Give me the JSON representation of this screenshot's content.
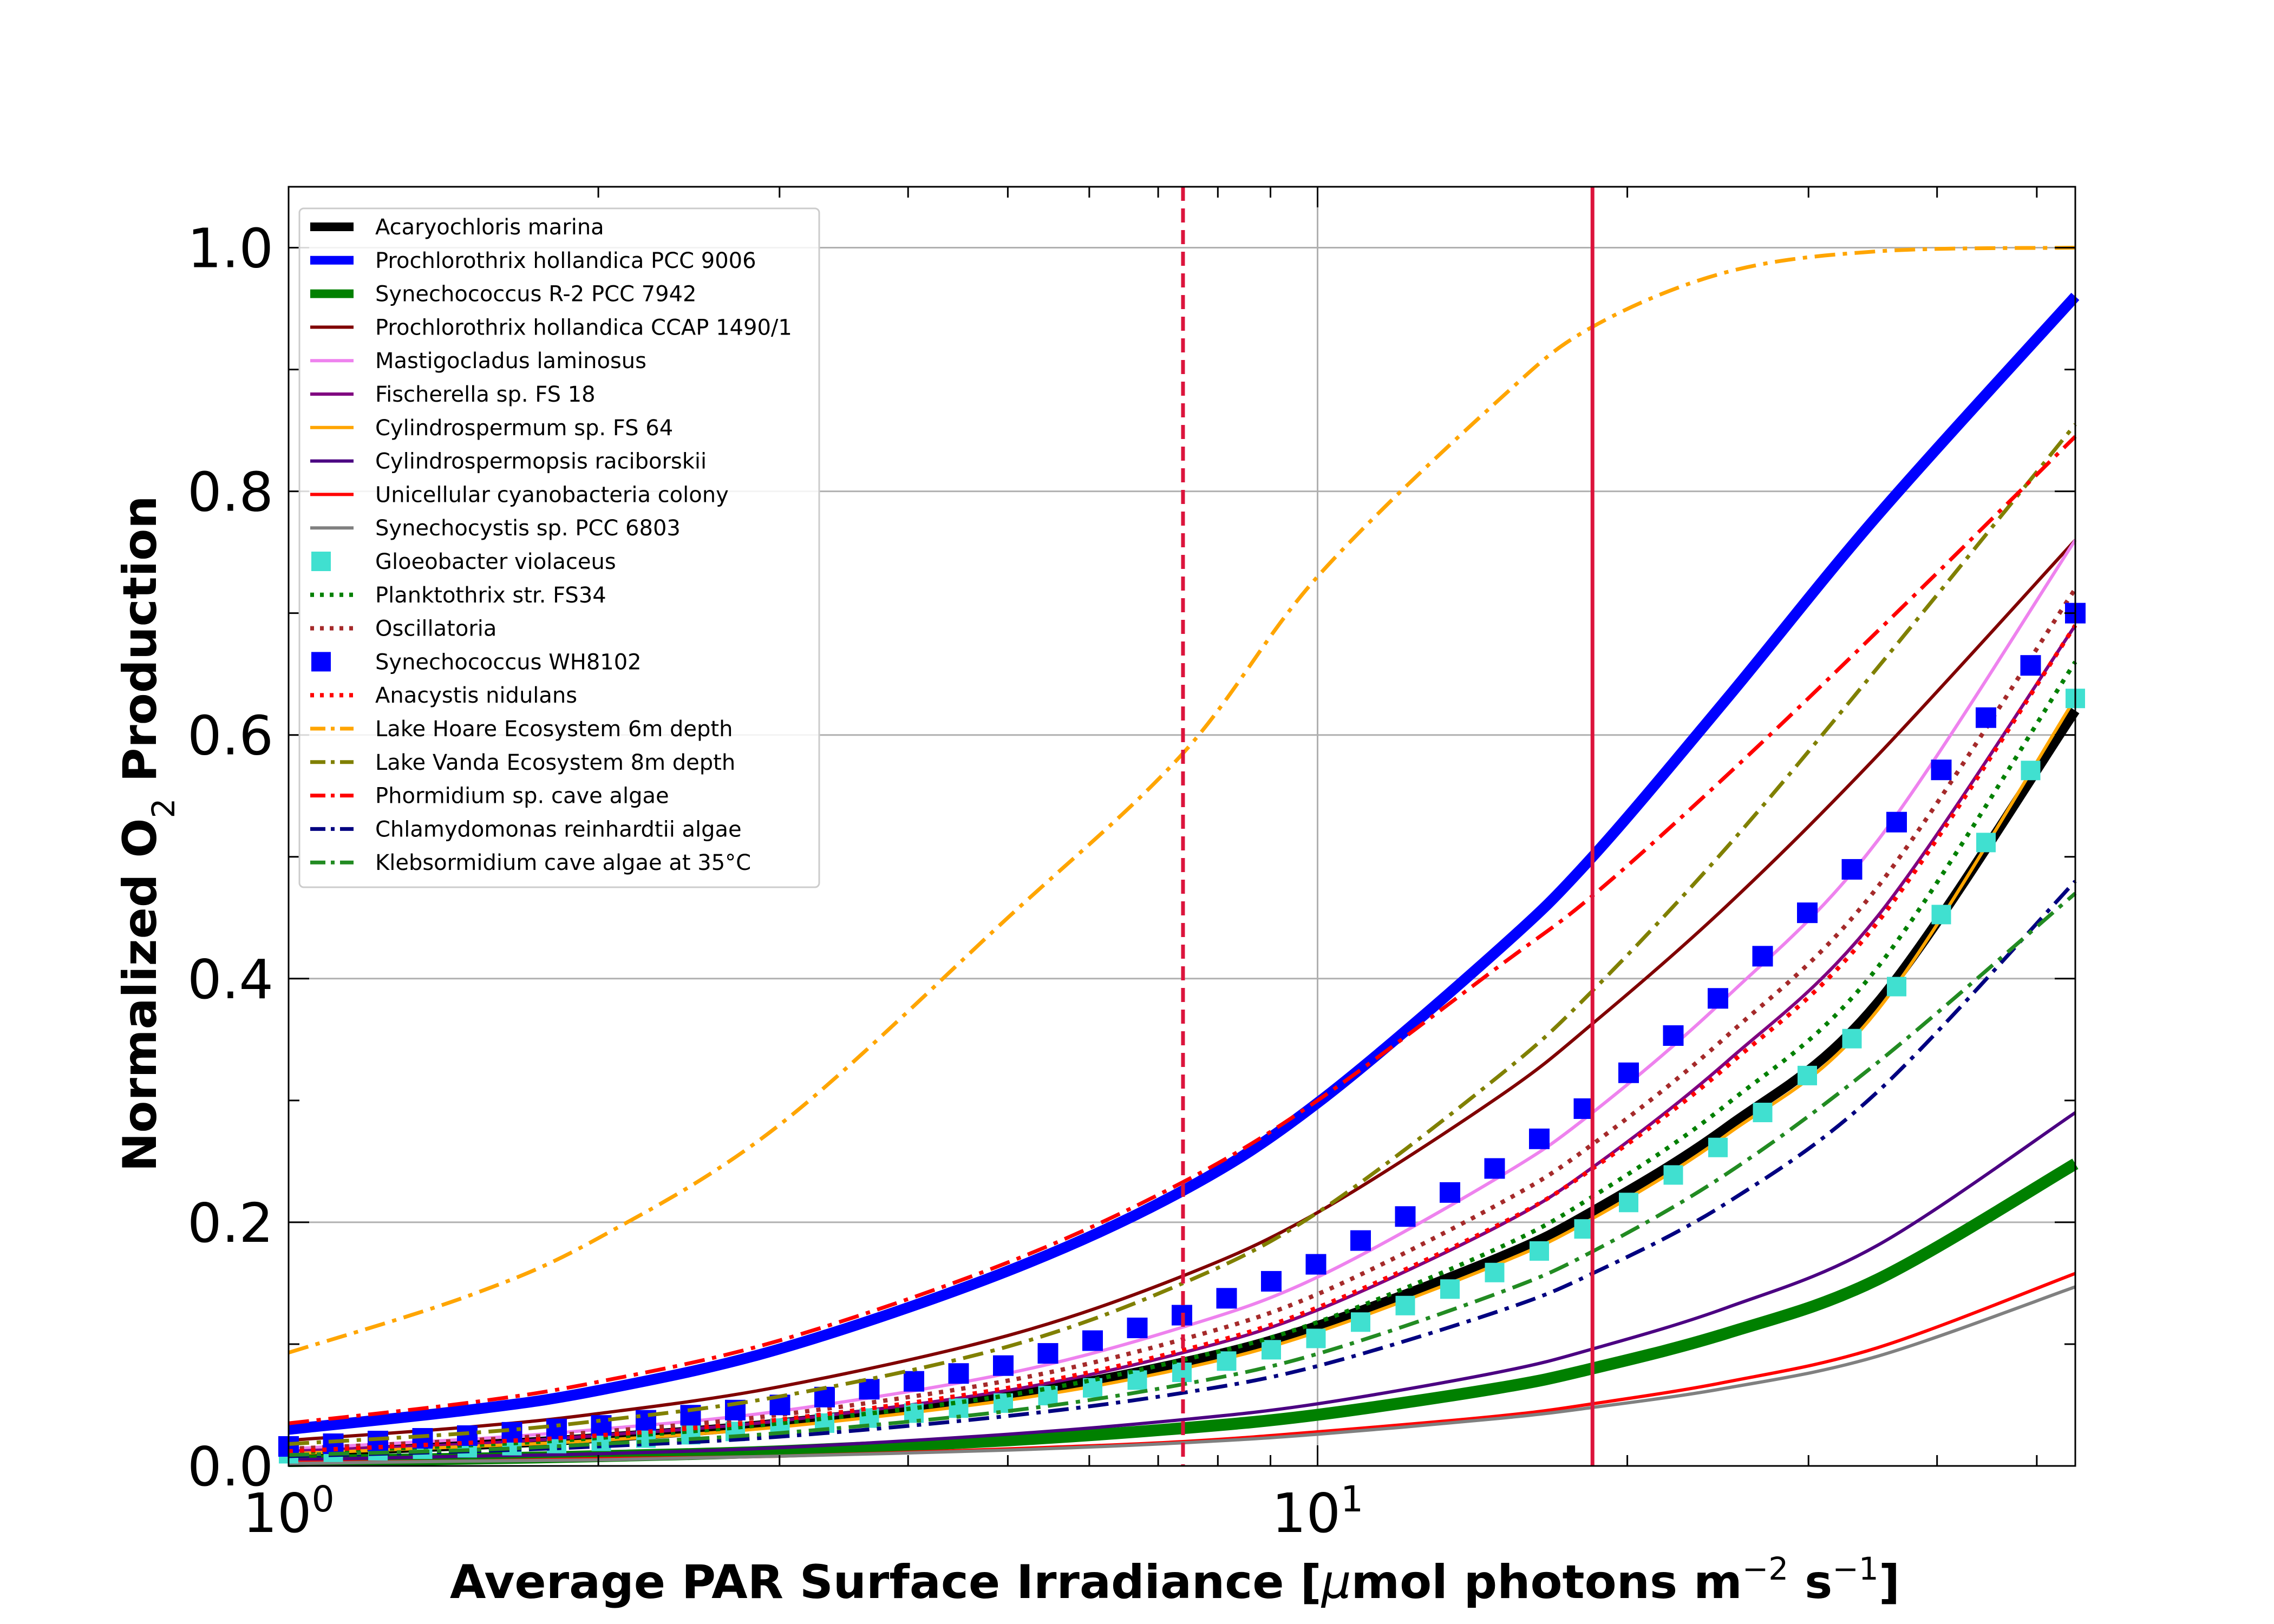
{
  "chart_data": {
    "type": "line",
    "title": "",
    "xlabel": {
      "pre": "Average PAR Surface Irradiance [",
      "mu": "μ",
      "mid1": "mol photons m",
      "sup1": "−2",
      "mid2": " s",
      "sup2": "−1",
      "post": "]"
    },
    "ylabel": {
      "pre": "Normalized O",
      "sub": "2",
      "post": " Production"
    },
    "x_scale": "log",
    "xlim": [
      1,
      54.5
    ],
    "ylim": [
      0,
      1.05
    ],
    "grid": true,
    "legend_position": "upper-left",
    "x_ticks": [
      {
        "value": 1,
        "base": "10",
        "exp": "0"
      },
      {
        "value": 10,
        "base": "10",
        "exp": "1"
      }
    ],
    "y_ticks": [
      {
        "value": 0.0,
        "label": "0.0"
      },
      {
        "value": 0.2,
        "label": "0.2"
      },
      {
        "value": 0.4,
        "label": "0.4"
      },
      {
        "value": 0.6,
        "label": "0.6"
      },
      {
        "value": 0.8,
        "label": "0.8"
      },
      {
        "value": 1.0,
        "label": "1.0"
      }
    ],
    "vlines": [
      {
        "x": 7.4,
        "style": "dashed",
        "color": "#dc143c"
      },
      {
        "x": 18.5,
        "style": "solid",
        "color": "#dc143c"
      }
    ],
    "x": [
      1,
      1.5,
      2,
      3,
      5,
      7.4,
      10,
      15,
      18.5,
      25,
      35,
      54.5
    ],
    "series": [
      {
        "name": "Acaryochloris marina",
        "color": "#000000",
        "style": "solid",
        "width": 18,
        "values": [
          0.011,
          0.017,
          0.023,
          0.035,
          0.058,
          0.085,
          0.115,
          0.171,
          0.209,
          0.278,
          0.38,
          0.62
        ]
      },
      {
        "name": "Prochlorothrix hollandica PCC 9006",
        "color": "#0000ff",
        "style": "solid",
        "width": 20,
        "values": [
          0.03,
          0.046,
          0.062,
          0.096,
          0.16,
          0.226,
          0.298,
          0.424,
          0.5,
          0.63,
          0.78,
          0.96
        ]
      },
      {
        "name": "Synechococcus R-2 PCC 7942",
        "color": "#008000",
        "style": "solid",
        "width": 22,
        "values": [
          0.004,
          0.006,
          0.008,
          0.012,
          0.021,
          0.031,
          0.042,
          0.064,
          0.08,
          0.109,
          0.153,
          0.248
        ]
      },
      {
        "name": "Prochlorothrix hollandica CCAP 1490/1",
        "color": "#800000",
        "style": "solid",
        "width": 6,
        "values": [
          0.021,
          0.032,
          0.043,
          0.065,
          0.107,
          0.156,
          0.208,
          0.303,
          0.363,
          0.46,
          0.583,
          0.76
        ]
      },
      {
        "name": "Mastigocladus laminosus",
        "color": "#ee82ee",
        "style": "solid",
        "width": 6,
        "values": [
          0.014,
          0.022,
          0.03,
          0.045,
          0.076,
          0.114,
          0.155,
          0.237,
          0.29,
          0.385,
          0.513,
          0.76
        ]
      },
      {
        "name": "Fischerella sp. FS 18",
        "color": "#800080",
        "style": "solid",
        "width": 6,
        "values": [
          0.012,
          0.018,
          0.025,
          0.037,
          0.062,
          0.093,
          0.128,
          0.197,
          0.245,
          0.332,
          0.451,
          0.69
        ]
      },
      {
        "name": "Cylindrospermum sp. FS 64",
        "color": "#ffa500",
        "style": "solid",
        "width": 6,
        "values": [
          0.01,
          0.016,
          0.021,
          0.032,
          0.054,
          0.08,
          0.11,
          0.166,
          0.203,
          0.272,
          0.374,
          0.63
        ]
      },
      {
        "name": "Cylindrospermopsis raciborskii",
        "color": "#4b0082",
        "style": "solid",
        "width": 6,
        "values": [
          0.005,
          0.008,
          0.01,
          0.015,
          0.026,
          0.038,
          0.051,
          0.077,
          0.096,
          0.13,
          0.181,
          0.29
        ]
      },
      {
        "name": "Unicellular cyanobacteria colony",
        "color": "#ff0000",
        "style": "solid",
        "width": 6,
        "values": [
          0.003,
          0.004,
          0.006,
          0.008,
          0.014,
          0.02,
          0.028,
          0.041,
          0.051,
          0.069,
          0.097,
          0.158
        ]
      },
      {
        "name": "Synechocystis sp. PCC 6803",
        "color": "#808080",
        "style": "solid",
        "width": 6,
        "values": [
          0.002,
          0.004,
          0.005,
          0.008,
          0.013,
          0.019,
          0.026,
          0.039,
          0.048,
          0.064,
          0.09,
          0.147
        ]
      },
      {
        "name": "Gloeobacter violaceus",
        "color": "#40e0d0",
        "style": "squares",
        "width": 36,
        "values": [
          0.01,
          0.015,
          0.02,
          0.031,
          0.052,
          0.077,
          0.105,
          0.16,
          0.198,
          0.266,
          0.368,
          0.63
        ]
      },
      {
        "name": "Planktothrix str. FS34",
        "color": "#008000",
        "style": "dotted",
        "width": 8,
        "values": [
          0.011,
          0.017,
          0.023,
          0.035,
          0.058,
          0.087,
          0.118,
          0.179,
          0.221,
          0.297,
          0.409,
          0.66
        ]
      },
      {
        "name": "Oscillatoria",
        "color": "#a52a2a",
        "style": "dotted",
        "width": 8,
        "values": [
          0.014,
          0.021,
          0.028,
          0.042,
          0.07,
          0.104,
          0.141,
          0.215,
          0.264,
          0.353,
          0.475,
          0.72
        ]
      },
      {
        "name": "Synechococcus WH8102",
        "color": "#0000ff",
        "style": "squares",
        "width": 38,
        "values": [
          0.016,
          0.025,
          0.033,
          0.05,
          0.083,
          0.124,
          0.166,
          0.246,
          0.298,
          0.39,
          0.51,
          0.7
        ]
      },
      {
        "name": "Anacystis nidulans",
        "color": "#ff0000",
        "style": "dotted",
        "width": 8,
        "values": [
          0.012,
          0.019,
          0.025,
          0.038,
          0.064,
          0.095,
          0.13,
          0.198,
          0.244,
          0.328,
          0.446,
          0.69
        ]
      },
      {
        "name": "Lake Hoare Ecosystem 6m depth",
        "color": "#ffa500",
        "style": "dashdot",
        "width": 7,
        "values": [
          0.093,
          0.14,
          0.187,
          0.28,
          0.45,
          0.585,
          0.73,
          0.875,
          0.935,
          0.98,
          0.997,
          1.0
        ]
      },
      {
        "name": "Lake Vanda Ecosystem 8m depth",
        "color": "#808000",
        "style": "dashdot",
        "width": 7,
        "values": [
          0.018,
          0.027,
          0.037,
          0.057,
          0.098,
          0.15,
          0.208,
          0.32,
          0.39,
          0.508,
          0.655,
          0.855
        ]
      },
      {
        "name": "Phormidium sp. cave algae",
        "color": "#ff0000",
        "style": "dashdot",
        "width": 7,
        "values": [
          0.035,
          0.052,
          0.069,
          0.103,
          0.167,
          0.233,
          0.3,
          0.41,
          0.468,
          0.567,
          0.685,
          0.845
        ]
      },
      {
        "name": "Chlamydomonas reinhardtii algae",
        "color": "#000080",
        "style": "dashdot",
        "width": 7,
        "values": [
          0.008,
          0.012,
          0.016,
          0.024,
          0.041,
          0.06,
          0.082,
          0.127,
          0.158,
          0.216,
          0.307,
          0.48
        ]
      },
      {
        "name": "Klebsormidium cave algae at 35°C",
        "color": "#228b22",
        "style": "dashdot",
        "width": 7,
        "values": [
          0.009,
          0.013,
          0.018,
          0.027,
          0.045,
          0.067,
          0.092,
          0.142,
          0.176,
          0.24,
          0.331,
          0.47
        ]
      }
    ]
  }
}
